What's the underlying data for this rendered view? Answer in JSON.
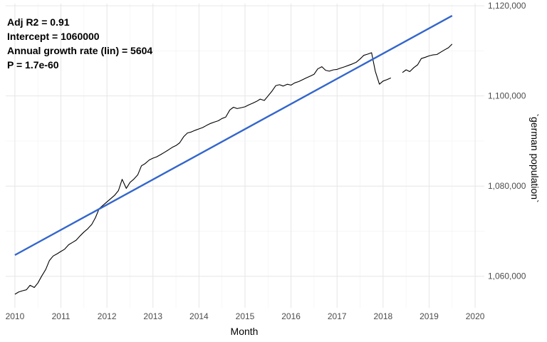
{
  "chart_data": {
    "type": "line",
    "xlabel": "Month",
    "ylabel": "`german population`",
    "xlim": [
      2009.8,
      2020.2
    ],
    "ylim": [
      1053000,
      1120500
    ],
    "x_ticks": [
      2010,
      2011,
      2012,
      2013,
      2014,
      2015,
      2016,
      2017,
      2018,
      2019,
      2020
    ],
    "x_tick_labels": [
      "2010",
      "2011",
      "2012",
      "2013",
      "2014",
      "2015",
      "2016",
      "2017",
      "2018",
      "2019",
      "2020"
    ],
    "y_ticks": [
      1060000,
      1080000,
      1100000,
      1120000
    ],
    "y_tick_labels": [
      "1,060,000",
      "1,080,000",
      "1,100,000",
      "1,120,000"
    ],
    "y_axis_position": "right",
    "grid": true,
    "annotations": [
      "Adj R2 =  0.91",
      "Intercept = 1060000",
      "Annual growth rate (lin) = 5604",
      "P = 1.7e-60"
    ],
    "series": [
      {
        "kind": "observed",
        "color": "#000000",
        "segments": [
          [
            [
              2010.0,
              1056000
            ],
            [
              2010.08,
              1056500
            ],
            [
              2010.17,
              1056800
            ],
            [
              2010.25,
              1057000
            ],
            [
              2010.33,
              1058000
            ],
            [
              2010.42,
              1057500
            ],
            [
              2010.5,
              1058500
            ],
            [
              2010.58,
              1060000
            ],
            [
              2010.67,
              1061500
            ],
            [
              2010.75,
              1063500
            ],
            [
              2010.83,
              1064500
            ],
            [
              2010.92,
              1065000
            ],
            [
              2011.0,
              1065500
            ],
            [
              2011.08,
              1066000
            ],
            [
              2011.17,
              1067000
            ],
            [
              2011.25,
              1067500
            ],
            [
              2011.33,
              1068000
            ],
            [
              2011.42,
              1069000
            ],
            [
              2011.5,
              1069800
            ],
            [
              2011.58,
              1070500
            ],
            [
              2011.67,
              1071500
            ],
            [
              2011.75,
              1073000
            ],
            [
              2011.83,
              1075000
            ],
            [
              2011.92,
              1075800
            ],
            [
              2012.0,
              1076500
            ],
            [
              2012.08,
              1077200
            ],
            [
              2012.17,
              1078000
            ],
            [
              2012.25,
              1079000
            ],
            [
              2012.33,
              1081500
            ],
            [
              2012.42,
              1079500
            ],
            [
              2012.5,
              1080800
            ],
            [
              2012.58,
              1081500
            ],
            [
              2012.67,
              1082500
            ],
            [
              2012.75,
              1084500
            ],
            [
              2012.83,
              1085000
            ],
            [
              2012.92,
              1085800
            ],
            [
              2013.0,
              1086200
            ],
            [
              2013.08,
              1086500
            ],
            [
              2013.17,
              1087000
            ],
            [
              2013.25,
              1087500
            ],
            [
              2013.33,
              1088000
            ],
            [
              2013.42,
              1088600
            ],
            [
              2013.5,
              1089000
            ],
            [
              2013.58,
              1089600
            ],
            [
              2013.67,
              1091000
            ],
            [
              2013.75,
              1091800
            ],
            [
              2013.83,
              1092000
            ],
            [
              2013.92,
              1092400
            ],
            [
              2014.0,
              1092700
            ],
            [
              2014.08,
              1093000
            ],
            [
              2014.17,
              1093500
            ],
            [
              2014.25,
              1093900
            ],
            [
              2014.33,
              1094200
            ],
            [
              2014.42,
              1094500
            ],
            [
              2014.5,
              1095000
            ],
            [
              2014.58,
              1095300
            ],
            [
              2014.67,
              1096900
            ],
            [
              2014.75,
              1097500
            ],
            [
              2014.83,
              1097200
            ],
            [
              2014.92,
              1097400
            ],
            [
              2015.0,
              1097600
            ],
            [
              2015.08,
              1098000
            ],
            [
              2015.17,
              1098400
            ],
            [
              2015.25,
              1098800
            ],
            [
              2015.33,
              1099300
            ],
            [
              2015.42,
              1099000
            ],
            [
              2015.5,
              1100000
            ],
            [
              2015.58,
              1101000
            ],
            [
              2015.67,
              1102300
            ],
            [
              2015.75,
              1102500
            ],
            [
              2015.83,
              1102200
            ],
            [
              2015.92,
              1102600
            ],
            [
              2016.0,
              1102400
            ],
            [
              2016.08,
              1102900
            ],
            [
              2016.17,
              1103200
            ],
            [
              2016.25,
              1103600
            ],
            [
              2016.33,
              1104000
            ],
            [
              2016.42,
              1104400
            ],
            [
              2016.5,
              1104800
            ],
            [
              2016.58,
              1106000
            ],
            [
              2016.67,
              1106500
            ],
            [
              2016.75,
              1105700
            ],
            [
              2016.83,
              1105500
            ],
            [
              2016.92,
              1105800
            ],
            [
              2017.0,
              1105900
            ],
            [
              2017.08,
              1106200
            ],
            [
              2017.17,
              1106500
            ],
            [
              2017.25,
              1106800
            ],
            [
              2017.33,
              1107100
            ],
            [
              2017.42,
              1107500
            ],
            [
              2017.5,
              1108200
            ],
            [
              2017.58,
              1109000
            ],
            [
              2017.67,
              1109300
            ],
            [
              2017.75,
              1109600
            ],
            [
              2017.83,
              1105500
            ],
            [
              2017.92,
              1102600
            ],
            [
              2018.0,
              1103300
            ],
            [
              2018.08,
              1103600
            ],
            [
              2018.17,
              1104000
            ]
          ],
          [
            [
              2018.42,
              1105200
            ],
            [
              2018.5,
              1105800
            ],
            [
              2018.58,
              1105400
            ],
            [
              2018.67,
              1106300
            ],
            [
              2018.75,
              1106900
            ],
            [
              2018.83,
              1108300
            ],
            [
              2018.92,
              1108600
            ],
            [
              2019.0,
              1108900
            ],
            [
              2019.08,
              1109100
            ],
            [
              2019.17,
              1109200
            ],
            [
              2019.25,
              1109700
            ],
            [
              2019.33,
              1110200
            ],
            [
              2019.42,
              1110700
            ],
            [
              2019.5,
              1111500
            ]
          ]
        ]
      },
      {
        "kind": "linear fit",
        "color": "#3366cc",
        "points": [
          [
            2010.0,
            1064700
          ],
          [
            2019.5,
            1117800
          ]
        ]
      }
    ]
  }
}
